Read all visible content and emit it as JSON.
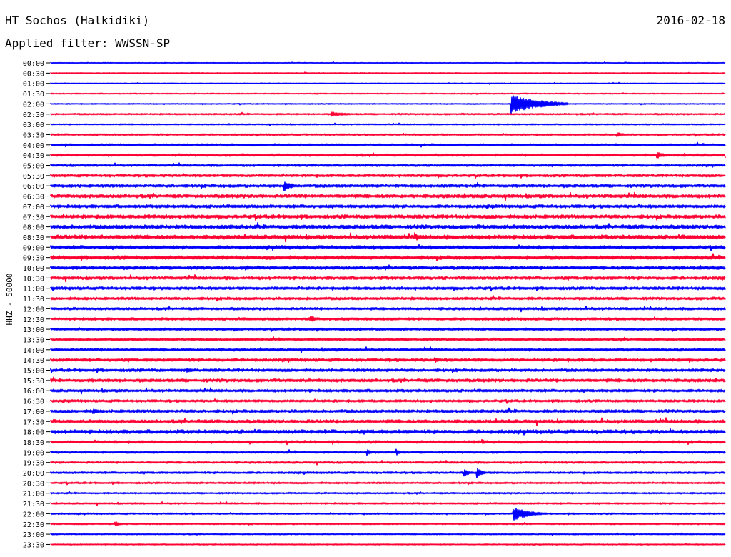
{
  "header": {
    "station": "HT Sochos (Halkidiki)",
    "date": "2016-02-18",
    "filter_label": "Applied filter: WWSSN-SP"
  },
  "colors": {
    "even_row": "#0000ff",
    "odd_row": "#ff0033",
    "background": "#ffffff",
    "text": "#000000"
  },
  "chart_data": {
    "type": "line",
    "title": "HT Sochos (Halkidiki)",
    "ylabel": "HHZ - 50000",
    "xlabel": "",
    "row_times": [
      "00:00",
      "00:30",
      "01:00",
      "01:30",
      "02:00",
      "02:30",
      "03:00",
      "03:30",
      "04:00",
      "04:30",
      "05:00",
      "05:30",
      "06:00",
      "06:30",
      "07:00",
      "07:30",
      "08:00",
      "08:30",
      "09:00",
      "09:30",
      "10:00",
      "10:30",
      "11:00",
      "11:30",
      "12:00",
      "12:30",
      "13:00",
      "13:30",
      "14:00",
      "14:30",
      "15:00",
      "15:30",
      "16:00",
      "16:30",
      "17:00",
      "17:30",
      "18:00",
      "18:30",
      "19:00",
      "19:30",
      "20:00",
      "20:30",
      "21:00",
      "21:30",
      "22:00",
      "22:30",
      "23:00",
      "23:30"
    ],
    "row_duration_minutes": 30,
    "series_color_alternation": [
      "blue",
      "red"
    ],
    "noise_level": [
      0.4,
      0.5,
      0.4,
      0.5,
      0.5,
      0.8,
      0.6,
      0.9,
      1.2,
      1.3,
      1.2,
      1.4,
      1.6,
      1.8,
      1.6,
      1.9,
      2.0,
      2.1,
      1.8,
      1.9,
      1.7,
      1.6,
      1.5,
      1.4,
      1.3,
      1.3,
      1.2,
      1.3,
      1.4,
      1.5,
      1.5,
      1.6,
      1.4,
      1.3,
      1.6,
      1.8,
      2.0,
      1.4,
      1.2,
      1.0,
      1.0,
      0.9,
      0.8,
      0.8,
      0.8,
      0.7,
      0.6,
      0.5
    ],
    "events": [
      {
        "row": "02:00",
        "minute": 20.5,
        "amplitude": 14,
        "duration_minutes": 2.5
      },
      {
        "row": "02:30",
        "minute": 12.5,
        "amplitude": 3,
        "duration_minutes": 1.5
      },
      {
        "row": "03:30",
        "minute": 25.2,
        "amplitude": 3,
        "duration_minutes": 0.8
      },
      {
        "row": "04:30",
        "minute": 27.0,
        "amplitude": 4,
        "duration_minutes": 0.8
      },
      {
        "row": "06:00",
        "minute": 10.4,
        "amplitude": 7,
        "duration_minutes": 0.8
      },
      {
        "row": "08:30",
        "minute": 16.3,
        "amplitude": 4,
        "duration_minutes": 0.6
      },
      {
        "row": "10:00",
        "minute": 8.7,
        "amplitude": 3,
        "duration_minutes": 1.2
      },
      {
        "row": "12:30",
        "minute": 11.6,
        "amplitude": 4,
        "duration_minutes": 0.5
      },
      {
        "row": "14:30",
        "minute": 17.1,
        "amplitude": 4,
        "duration_minutes": 0.5
      },
      {
        "row": "15:00",
        "minute": 6.1,
        "amplitude": 3,
        "duration_minutes": 0.8
      },
      {
        "row": "17:00",
        "minute": 1.9,
        "amplitude": 4,
        "duration_minutes": 0.6
      },
      {
        "row": "18:30",
        "minute": 19.2,
        "amplitude": 3,
        "duration_minutes": 0.6
      },
      {
        "row": "19:00",
        "minute": 14.1,
        "amplitude": 4,
        "duration_minutes": 0.4
      },
      {
        "row": "19:00",
        "minute": 15.4,
        "amplitude": 4,
        "duration_minutes": 0.4
      },
      {
        "row": "20:00",
        "minute": 18.4,
        "amplitude": 5,
        "duration_minutes": 0.5
      },
      {
        "row": "20:00",
        "minute": 19.0,
        "amplitude": 6,
        "duration_minutes": 0.5
      },
      {
        "row": "22:00",
        "minute": 20.6,
        "amplitude": 9,
        "duration_minutes": 1.5
      },
      {
        "row": "22:30",
        "minute": 2.9,
        "amplitude": 3,
        "duration_minutes": 0.5
      }
    ]
  }
}
